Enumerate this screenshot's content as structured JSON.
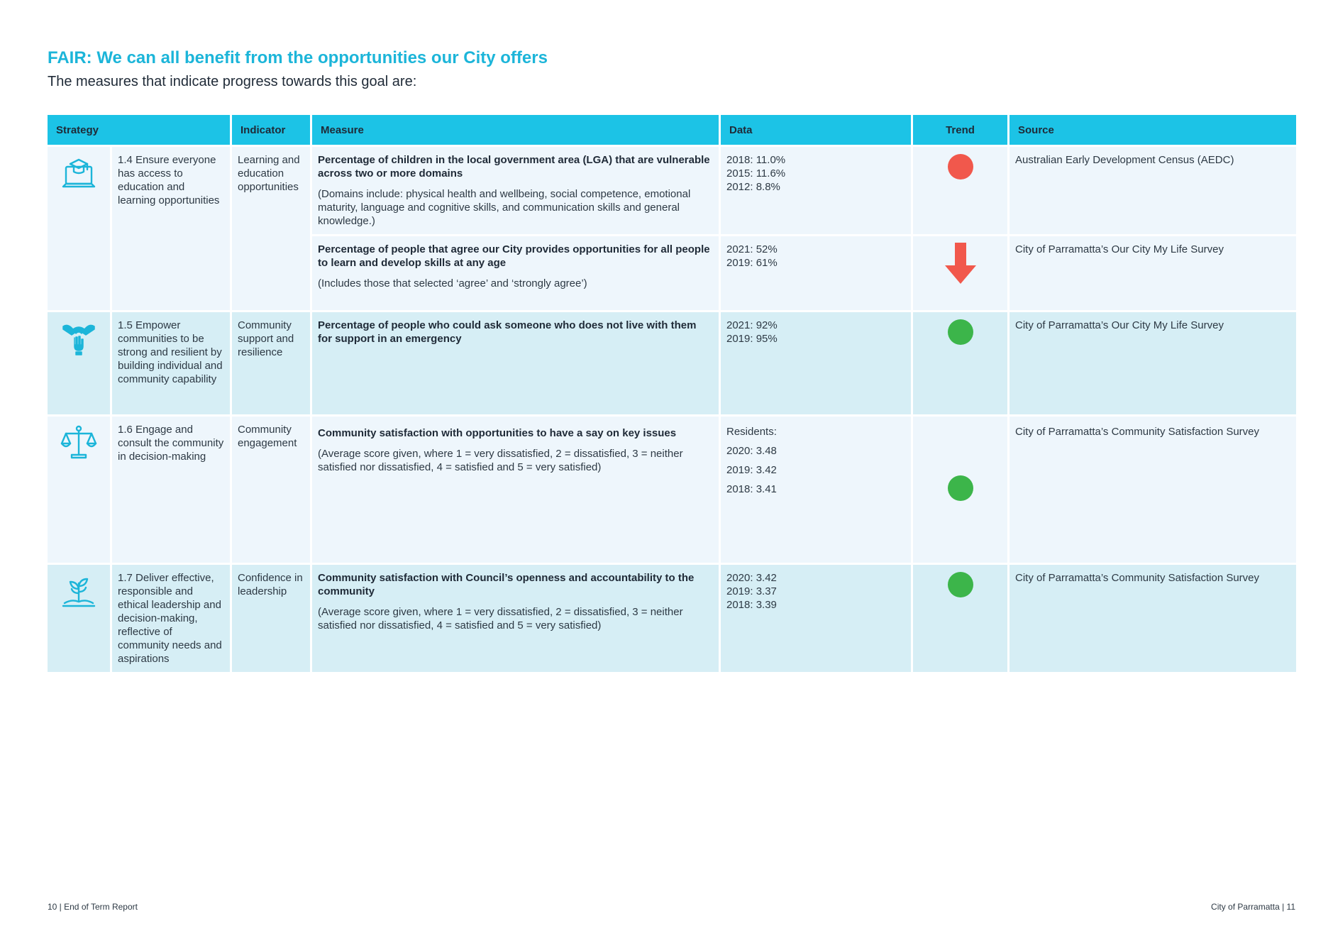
{
  "heading": {
    "title": "FAIR: We can all benefit from the opportunities our City offers",
    "subtitle": "The measures that indicate progress towards this goal are:"
  },
  "table": {
    "headers": {
      "strategy": "Strategy",
      "indicator": "Indicator",
      "measure": "Measure",
      "data": "Data",
      "trend": "Trend",
      "source": "Source"
    },
    "rows": [
      {
        "icon": "laptop-graduation-cap-icon",
        "strategy": "1.4 Ensure everyone has access to education and learning opportunities",
        "indicator": "Learning and education opportunities",
        "measures": [
          {
            "bold": "Percentage of children in the local government area (LGA) that are vulnerable across two or more domains",
            "note": "(Domains include: physical health and wellbeing, social competence, emotional maturity, language and cognitive skills, and communication skills and general knowledge.)",
            "data": [
              "2018: 11.0%",
              "2015: 11.6%",
              "2012: 8.8%"
            ],
            "trend": "red-dot",
            "source": "Australian Early Development Census (AEDC)"
          },
          {
            "bold": "Percentage of people that agree our City provides opportunities for all people to learn and develop skills at any age",
            "note": "(Includes those that selected ‘agree’ and ‘strongly agree’)",
            "data": [
              "2021: 52%",
              "2019: 61%"
            ],
            "trend": "red-down-arrow",
            "source": "City of Parramatta’s Our City My Life Survey"
          }
        ]
      },
      {
        "icon": "hands-support-icon",
        "strategy": "1.5 Empower communities to be strong and resilient by building individual and community capability",
        "indicator": "Community support and resilience",
        "measures": [
          {
            "bold": "Percentage of people who could ask someone who does not live with them for support in an emergency",
            "note": "",
            "data": [
              "2021: 92%",
              "2019: 95%"
            ],
            "trend": "green-dot",
            "source": "City of Parramatta’s Our City My Life Survey"
          }
        ]
      },
      {
        "icon": "balance-scale-icon",
        "strategy": "1.6 Engage and consult the community in decision-making",
        "indicator": "Community engagement",
        "measures": [
          {
            "bold": "Community satisfaction with opportunities to have a say on key issues",
            "note": "(Average score given, where 1 = very dissatisfied, 2 = dissatisfied, 3 = neither satisfied nor dissatisfied, 4 = satisfied and 5 = very satisfied)",
            "data": [
              "Residents:",
              "2020: 3.48",
              "2019: 3.42",
              "2018: 3.41"
            ],
            "trend": "green-dot",
            "source": "City of Parramatta’s Community Satisfaction Survey"
          }
        ]
      },
      {
        "icon": "seedling-hand-icon",
        "strategy": "1.7 Deliver effective, responsible and ethical leadership and decision-making, reflective of community needs and aspirations",
        "indicator": "Confidence in leadership",
        "measures": [
          {
            "bold": "Community satisfaction with Council’s openness and accountability to the community",
            "note": "(Average score given, where 1 = very dissatisfied, 2 = dissatisfied, 3 = neither satisfied nor dissatisfied, 4 = satisfied and 5 = very satisfied)",
            "data": [
              "2020: 3.42",
              "2019: 3.37",
              "2018: 3.39"
            ],
            "trend": "green-dot",
            "source": "City of Parramatta’s Community Satisfaction Survey"
          }
        ]
      }
    ]
  },
  "colors": {
    "accent": "#1cb5d9",
    "header_bg": "#1cc3e6",
    "row_light": "#eef6fc",
    "row_dark": "#d6eef5",
    "trend_red": "#f1584c",
    "trend_green": "#3cb54a"
  },
  "footer": {
    "left": "10 | End of Term Report",
    "right": "City of Parramatta | 11"
  }
}
